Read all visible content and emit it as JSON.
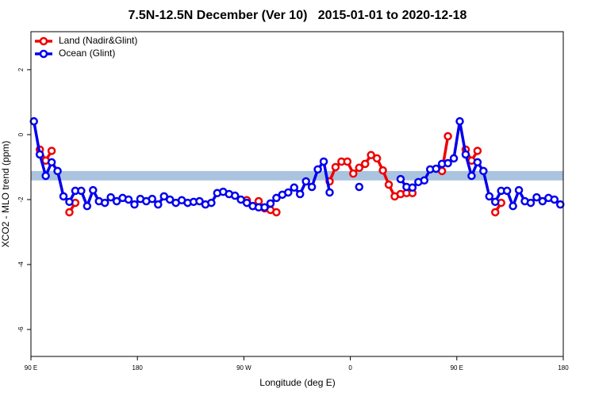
{
  "chart_data": {
    "type": "line",
    "title": "7.5N-12.5N December (Ver 10)   2015-01-01 to 2020-12-18",
    "x_label": "Longitude (deg E)",
    "y_label": "XCO2 - MLO trend (ppm)",
    "xlim": [
      90,
      540
    ],
    "xticks": [
      {
        "value": 90,
        "label": "90 E"
      },
      {
        "value": 180,
        "label": "180"
      },
      {
        "value": 270,
        "label": "90 W"
      },
      {
        "value": 360,
        "label": "0"
      },
      {
        "value": 450,
        "label": "90 E"
      },
      {
        "value": 540,
        "label": "180"
      }
    ],
    "ylim": [
      -6.83,
      3.17
    ],
    "yticks": [
      2,
      0,
      -2,
      -4,
      -6
    ],
    "legend": "top-left",
    "band": {
      "ymin": -1.41,
      "ymax": -1.12,
      "color": "#aac3df"
    },
    "x": [
      92.5,
      97.5,
      102.5,
      107.5,
      112.5,
      117.5,
      122.5,
      127.5,
      132.5,
      137.5,
      142.5,
      147.5,
      152.5,
      157.5,
      162.5,
      167.5,
      172.5,
      177.5,
      182.5,
      187.5,
      192.5,
      197.5,
      202.5,
      207.5,
      212.5,
      217.5,
      222.5,
      227.5,
      232.5,
      237.5,
      242.5,
      247.5,
      252.5,
      257.5,
      262.5,
      267.5,
      272.5,
      277.5,
      282.5,
      287.5,
      292.5,
      297.5,
      302.5,
      307.5,
      312.5,
      317.5,
      322.5,
      327.5,
      332.5,
      337.5,
      342.5,
      347.5,
      352.5,
      357.5,
      362.5,
      367.5,
      372.5,
      377.5,
      382.5,
      387.5,
      392.5,
      397.5,
      402.5,
      407.5,
      412.5,
      417.5,
      422.5,
      427.5,
      432.5,
      437.5,
      442.5,
      447.5,
      452.5,
      457.5,
      462.5,
      467.5,
      472.5,
      477.5,
      482.5,
      487.5,
      492.5,
      497.5,
      502.5,
      507.5,
      512.5,
      517.5,
      522.5,
      527.5,
      532.5,
      537.5
    ],
    "series": [
      {
        "name": "Land (Nadir&Glint)",
        "color": "#ee0000",
        "values": [
          null,
          -0.46,
          -0.8,
          -0.5,
          null,
          null,
          -2.39,
          -2.1,
          null,
          null,
          null,
          null,
          null,
          null,
          null,
          null,
          null,
          null,
          null,
          null,
          null,
          null,
          null,
          null,
          null,
          null,
          null,
          null,
          null,
          null,
          null,
          null,
          null,
          null,
          null,
          null,
          -2.02,
          -2.2,
          -2.05,
          -2.27,
          -2.32,
          -2.39,
          null,
          null,
          null,
          null,
          null,
          null,
          null,
          null,
          -1.44,
          -1.0,
          -0.83,
          -0.83,
          -1.2,
          -1.02,
          -0.9,
          -0.63,
          -0.73,
          -1.1,
          -1.54,
          -1.9,
          -1.83,
          -1.8,
          -1.8,
          null,
          null,
          null,
          null,
          -1.12,
          -0.05,
          null,
          null,
          -0.46,
          -0.8,
          -0.5,
          null,
          null,
          -2.39,
          -2.1,
          null,
          null,
          null,
          null,
          null,
          null,
          null,
          null,
          null,
          null
        ]
      },
      {
        "name": "Ocean (Glint)",
        "color": "#0000ee",
        "values": [
          0.41,
          -0.61,
          -1.27,
          -0.85,
          -1.12,
          -1.9,
          -2.07,
          -1.73,
          -1.73,
          -2.2,
          -1.71,
          -2.05,
          -2.1,
          -1.93,
          -2.05,
          -1.95,
          -2.0,
          -2.15,
          -1.98,
          -2.05,
          -1.98,
          -2.15,
          -1.9,
          -2.0,
          -2.1,
          -2.02,
          -2.1,
          -2.07,
          -2.05,
          -2.15,
          -2.1,
          -1.8,
          -1.76,
          -1.83,
          -1.88,
          -2.0,
          -2.1,
          -2.2,
          -2.24,
          -2.24,
          -2.12,
          -1.95,
          -1.85,
          -1.78,
          -1.63,
          -1.83,
          -1.44,
          -1.61,
          -1.07,
          -0.83,
          -1.78,
          null,
          null,
          null,
          null,
          -1.61,
          null,
          null,
          null,
          null,
          null,
          null,
          -1.37,
          -1.61,
          -1.63,
          -1.46,
          -1.41,
          -1.07,
          -1.05,
          -0.9,
          -0.88,
          -0.73,
          0.41,
          -0.61,
          -1.27,
          -0.85,
          -1.12,
          -1.9,
          -2.07,
          -1.73,
          -1.73,
          -2.2,
          -1.71,
          -2.05,
          -2.1,
          -1.93,
          -2.05,
          -1.95,
          -2.0,
          -2.15
        ]
      }
    ]
  }
}
